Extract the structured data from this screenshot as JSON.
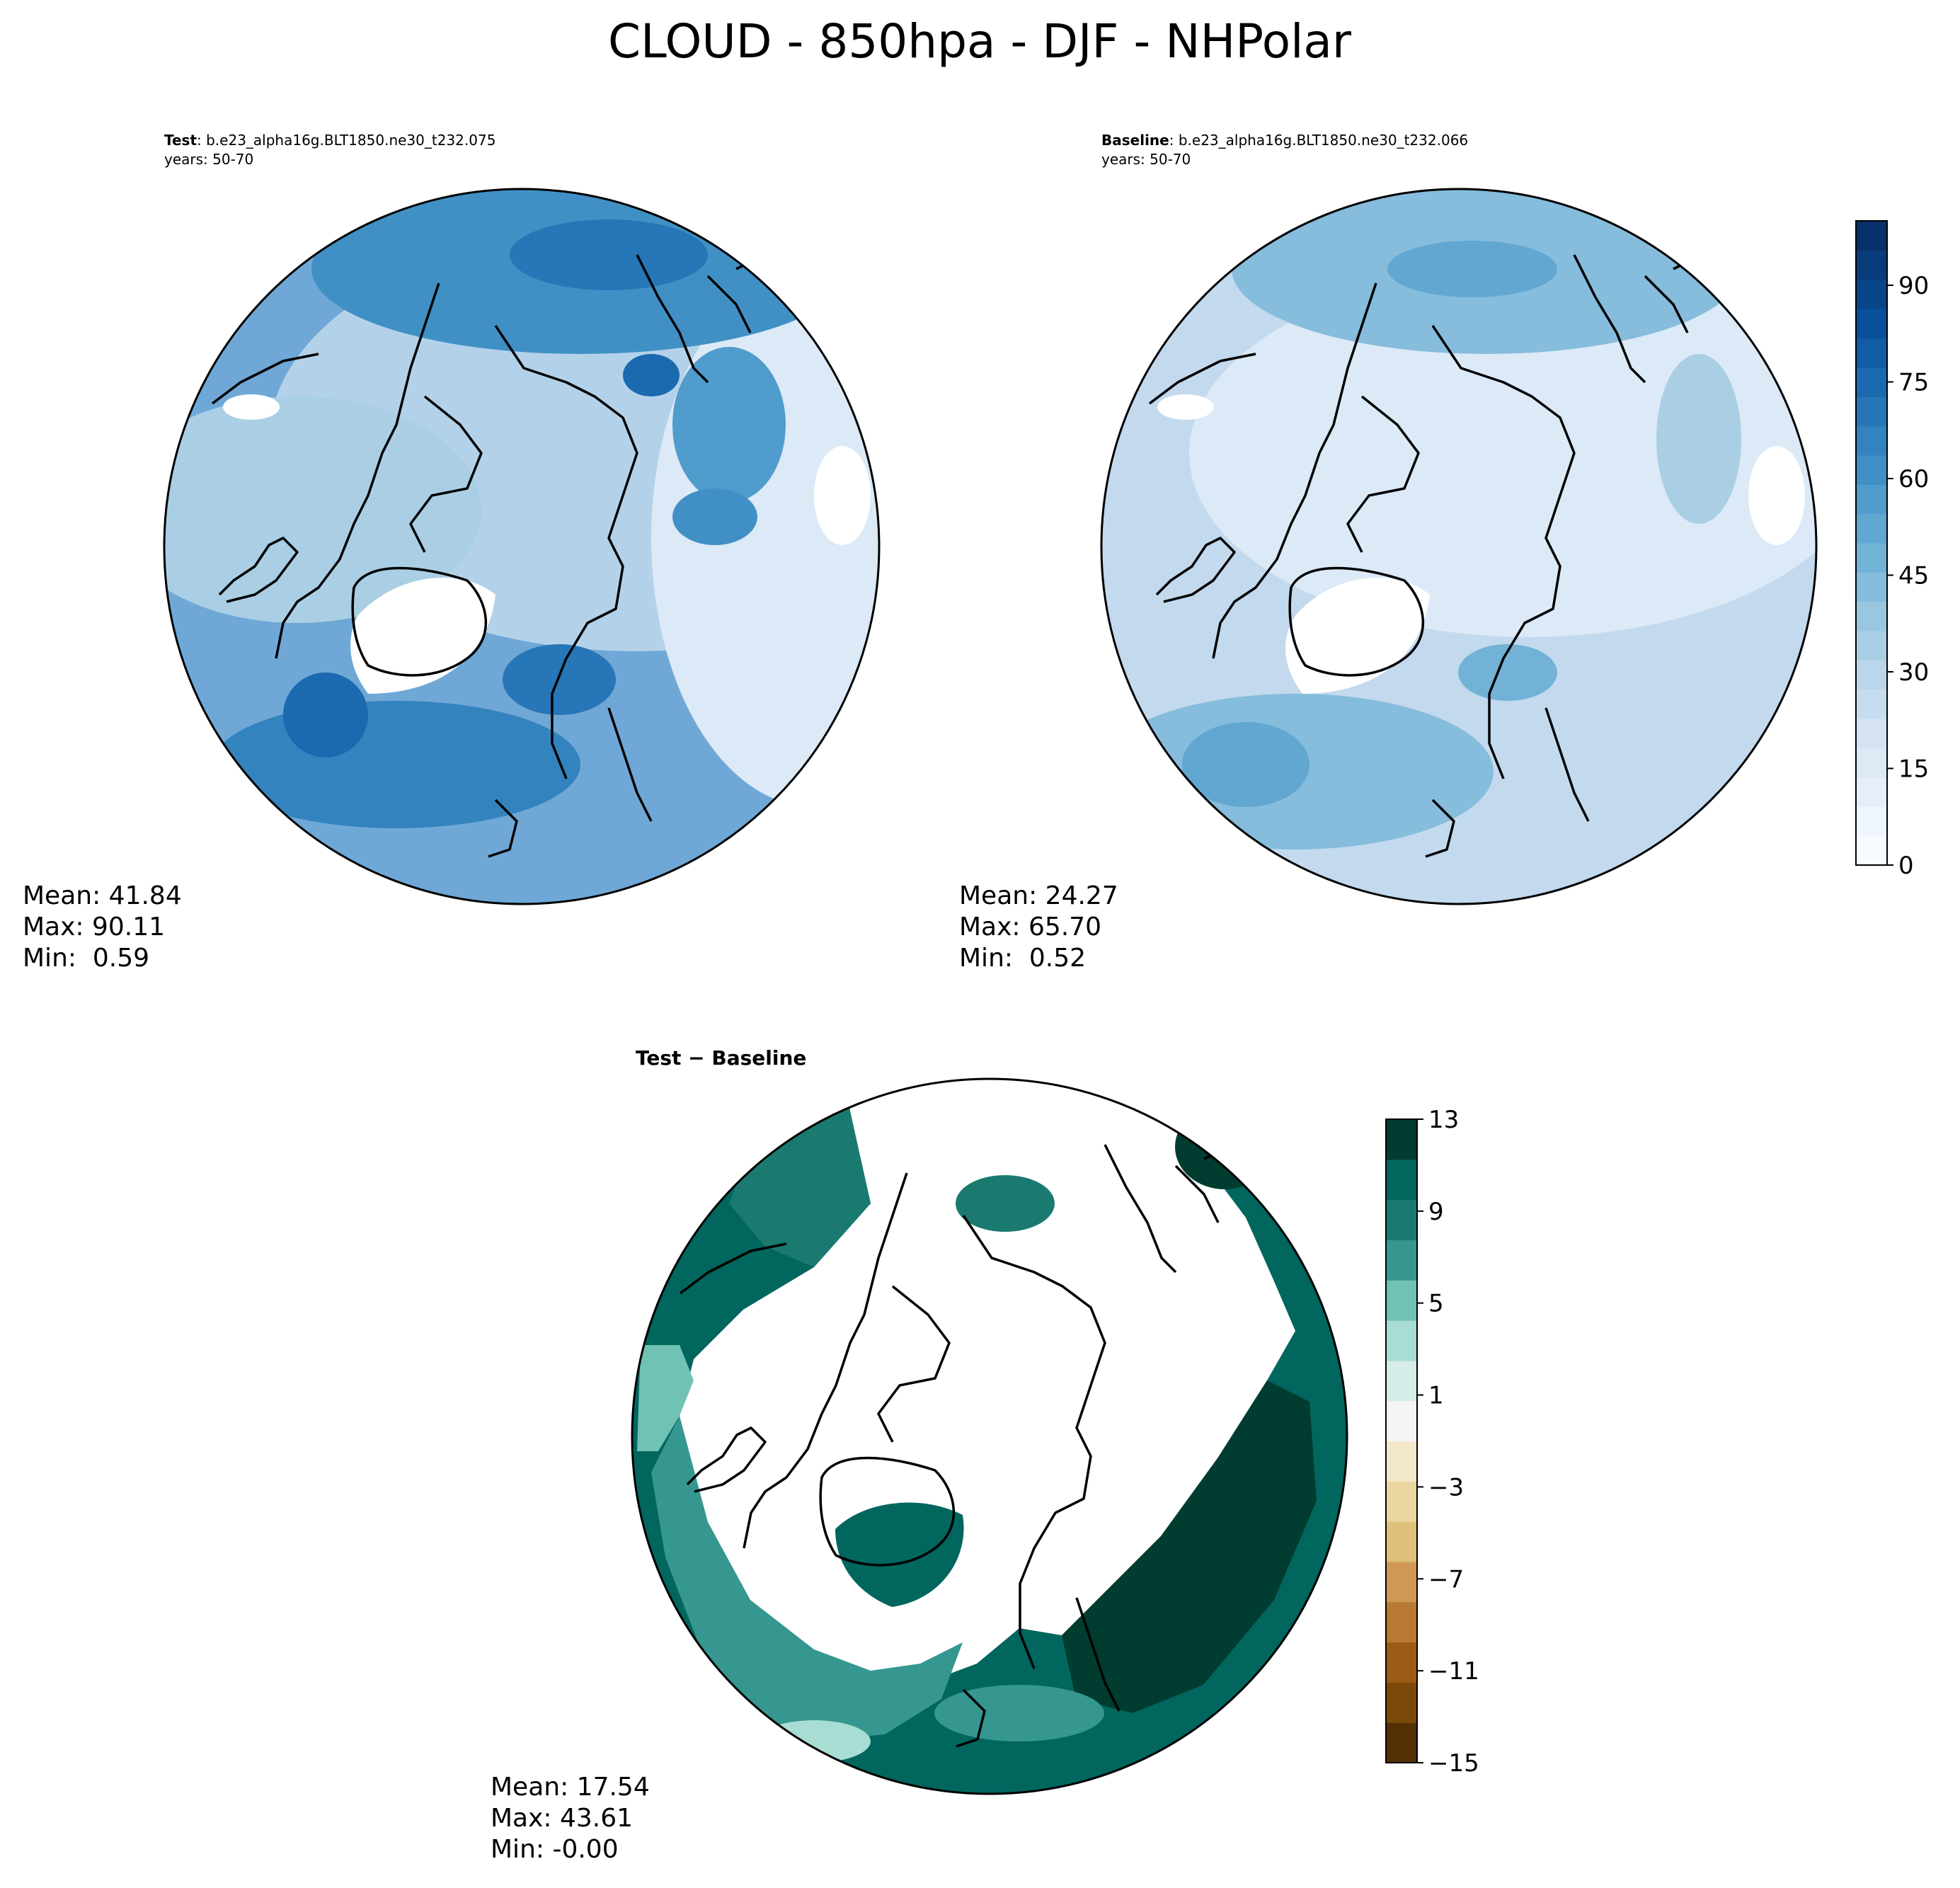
{
  "figure": {
    "title": "CLOUD - 850hpa - DJF - NHPolar"
  },
  "panels": {
    "test": {
      "label_bold": "Test",
      "case": ": b.e23_alpha16g.BLT1850.ne30_t232.075",
      "years": "years: 50-70",
      "mean": "Mean: 41.84",
      "max": "Max: 90.11",
      "min": "Min:  0.59"
    },
    "baseline": {
      "label_bold": "Baseline",
      "case": ": b.e23_alpha16g.BLT1850.ne30_t232.066",
      "years": "years: 50-70",
      "mean": "Mean: 24.27",
      "max": "Max: 65.70",
      "min": "Min:  0.52"
    },
    "diff": {
      "title": "Test − Baseline",
      "mean": "Mean: 17.54",
      "max": "Max: 43.61",
      "min": "Min: -0.00"
    }
  },
  "colors": {
    "blues": [
      "#f7fbff",
      "#eef5fc",
      "#e5eff9",
      "#dce9f6",
      "#d3e3f3",
      "#c8dcf0",
      "#bad6eb",
      "#aacfe5",
      "#99c7e0",
      "#86bcdc",
      "#72b2d7",
      "#61a7d2",
      "#509ccc",
      "#4190c5",
      "#3383be",
      "#2676b8",
      "#1b69af",
      "#115ca5",
      "#08509b",
      "#08468b",
      "#083b7a",
      "#08306b"
    ],
    "brbg": [
      "#543005",
      "#7b4a0b",
      "#9c5c16",
      "#b87a32",
      "#cf9955",
      "#dfc07b",
      "#ebd5a0",
      "#f4e8ca",
      "#f5f5f5",
      "#d6ece9",
      "#a8ddd3",
      "#6fc2b4",
      "#35978f",
      "#1a7a70",
      "#01665e",
      "#003c30"
    ],
    "test_base": "#6fa8d6",
    "baseline_base": "#c3d9ee",
    "diff_base": "#ffffff"
  },
  "chart_data": [
    {
      "type": "heatmap",
      "panel": "test",
      "projection": "north polar stereographic",
      "colorbar": "shared",
      "stats": {
        "mean": 41.84,
        "max": 90.11,
        "min": 0.59
      }
    },
    {
      "type": "heatmap",
      "panel": "baseline",
      "projection": "north polar stereographic",
      "colorbar_levels": [
        0,
        5,
        10,
        15,
        20,
        25,
        30,
        35,
        40,
        45,
        50,
        55,
        60,
        65,
        70,
        75,
        80,
        85,
        90,
        95,
        100
      ],
      "colorbar_ticks": [
        "0",
        "15",
        "30",
        "45",
        "60",
        "75",
        "90"
      ],
      "colormap": "Blues",
      "stats": {
        "mean": 24.27,
        "max": 65.7,
        "min": 0.52
      }
    },
    {
      "type": "heatmap",
      "panel": "diff",
      "projection": "north polar stereographic",
      "colorbar_levels": [
        -15,
        -13,
        -11,
        -9,
        -7,
        -5,
        -3,
        -1,
        1,
        3,
        5,
        7,
        9,
        11,
        13
      ],
      "colorbar_ticks": [
        "−15",
        "−11",
        "−7",
        "−3",
        "1",
        "5",
        "9",
        "13"
      ],
      "colormap": "BrBG",
      "stats": {
        "mean": 17.54,
        "max": 43.61,
        "min": -0.0
      }
    }
  ]
}
